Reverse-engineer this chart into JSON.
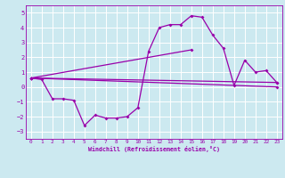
{
  "xlabel": "Windchill (Refroidissement éolien,°C)",
  "bg_color": "#cce9f0",
  "grid_color": "#ffffff",
  "line_color": "#9900aa",
  "xlim": [
    -0.5,
    23.5
  ],
  "ylim": [
    -3.5,
    5.5
  ],
  "xticks": [
    0,
    1,
    2,
    3,
    4,
    5,
    6,
    7,
    8,
    9,
    10,
    11,
    12,
    13,
    14,
    15,
    16,
    17,
    18,
    19,
    20,
    21,
    22,
    23
  ],
  "yticks": [
    -3,
    -2,
    -1,
    0,
    1,
    2,
    3,
    4,
    5
  ],
  "series1_x": [
    0,
    1,
    2,
    3,
    4,
    5,
    6,
    7,
    8,
    9,
    10,
    11,
    12,
    13,
    14,
    15,
    16,
    17,
    18,
    19,
    20,
    21,
    22,
    23
  ],
  "series1_y": [
    0.6,
    0.5,
    -0.8,
    -0.8,
    -0.9,
    -2.6,
    -1.9,
    -2.1,
    -2.1,
    -2.0,
    -1.4,
    2.4,
    4.0,
    4.2,
    4.2,
    4.8,
    4.7,
    3.5,
    2.6,
    0.1,
    1.8,
    1.0,
    1.1,
    0.3
  ],
  "series2_x": [
    0,
    23
  ],
  "series2_y": [
    0.6,
    0.3
  ],
  "series3_x": [
    0,
    15
  ],
  "series3_y": [
    0.6,
    2.5
  ],
  "series4_x": [
    0,
    23
  ],
  "series4_y": [
    0.6,
    0.0
  ]
}
